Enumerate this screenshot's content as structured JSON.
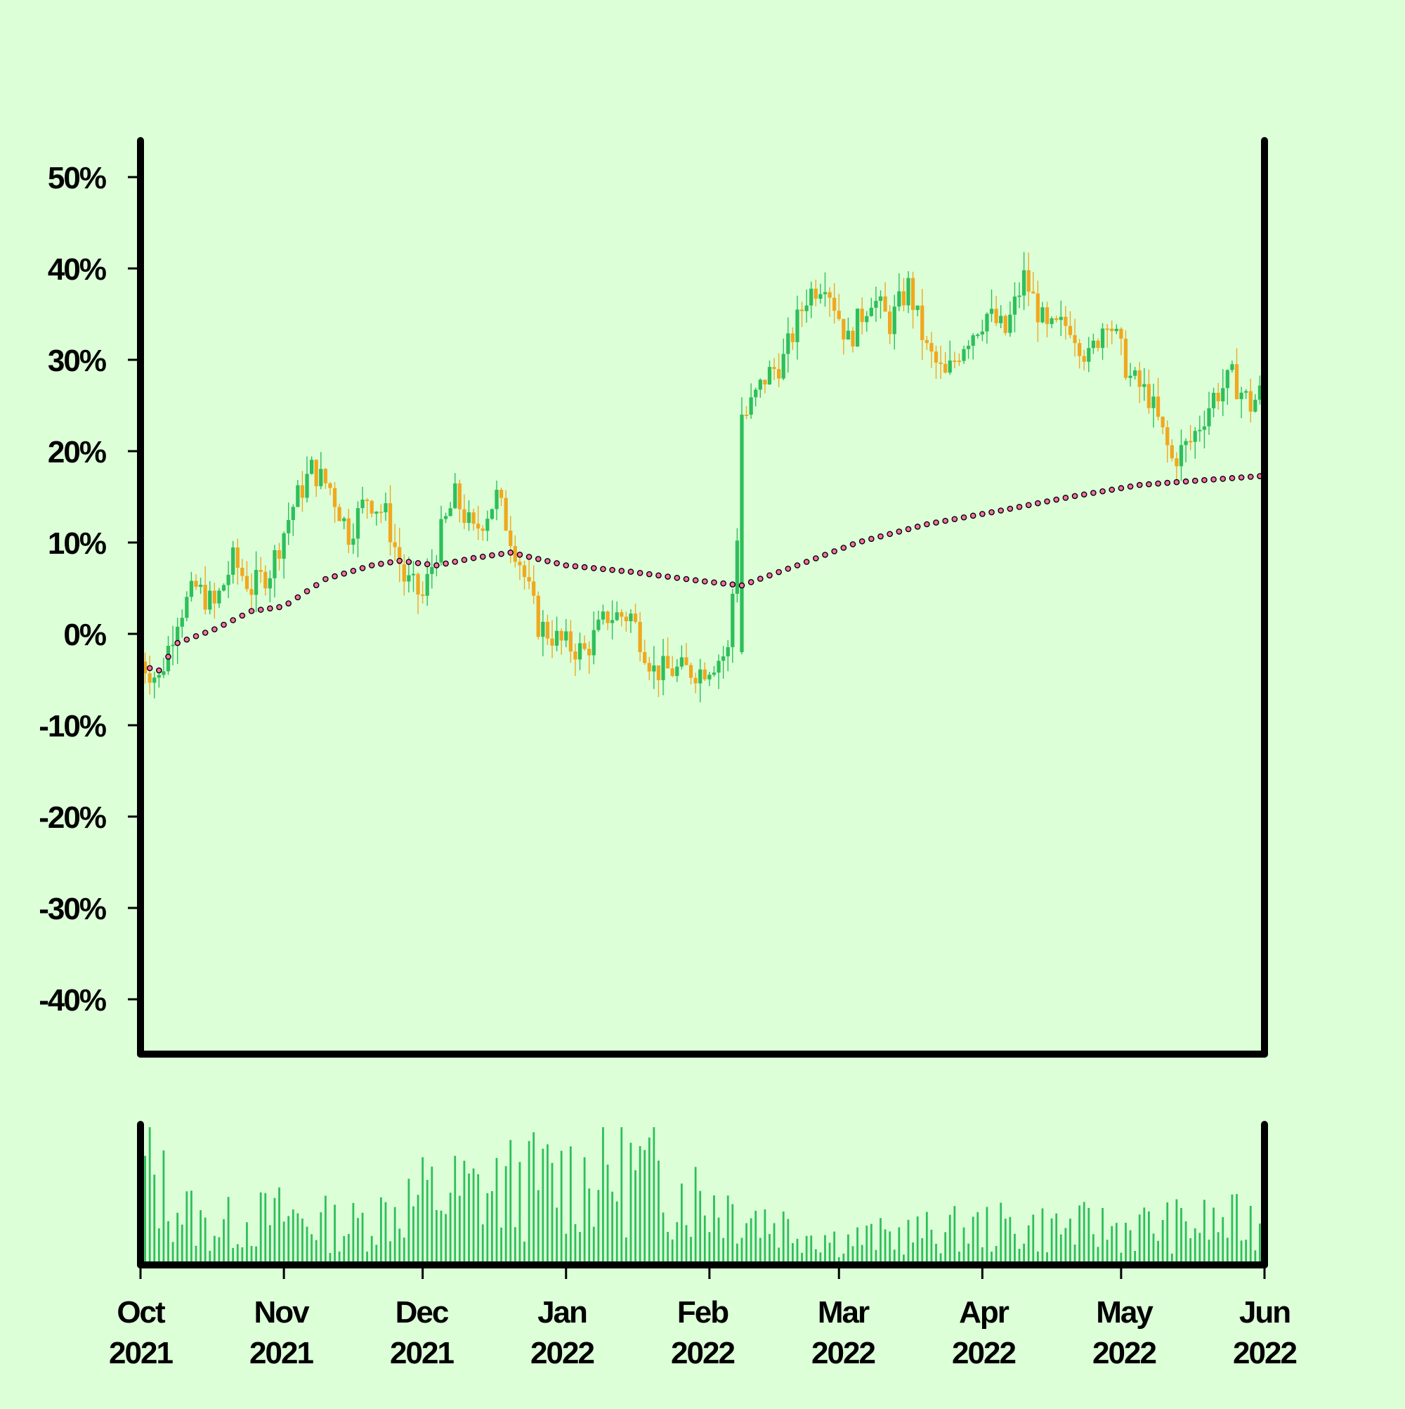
{
  "colors": {
    "background": "#dcffd8",
    "up": "#2ebf5a",
    "down": "#f0a81e",
    "volume": "#2ebf5a",
    "ma_fill": "#ff6fa8",
    "ma_stroke": "#000000",
    "axis": "#000000"
  },
  "chart_data": {
    "type": "candlestick",
    "title": "",
    "xlabel": "",
    "ylabel": "",
    "y_unit": "%",
    "ylim": [
      -46,
      54
    ],
    "yticks": [
      {
        "value": 50,
        "label": "50%"
      },
      {
        "value": 40,
        "label": "40%"
      },
      {
        "value": 30,
        "label": "30%"
      },
      {
        "value": 20,
        "label": "20%"
      },
      {
        "value": 10,
        "label": "10%"
      },
      {
        "value": 0,
        "label": "0%"
      },
      {
        "value": -10,
        "label": "-10%"
      },
      {
        "value": -20,
        "label": "-20%"
      },
      {
        "value": -30,
        "label": "-30%"
      },
      {
        "value": -40,
        "label": "-40%"
      }
    ],
    "xlim": [
      "2021-10-01",
      "2022-06-01"
    ],
    "xticks": [
      {
        "date": "2021-10-01",
        "month": "Oct",
        "year": "2021"
      },
      {
        "date": "2021-11-01",
        "month": "Nov",
        "year": "2021"
      },
      {
        "date": "2021-12-01",
        "month": "Dec",
        "year": "2021"
      },
      {
        "date": "2022-01-01",
        "month": "Jan",
        "year": "2022"
      },
      {
        "date": "2022-02-01",
        "month": "Feb",
        "year": "2022"
      },
      {
        "date": "2022-03-01",
        "month": "Mar",
        "year": "2022"
      },
      {
        "date": "2022-04-01",
        "month": "Apr",
        "year": "2022"
      },
      {
        "date": "2022-05-01",
        "month": "May",
        "year": "2022"
      },
      {
        "date": "2022-06-01",
        "month": "Jun",
        "year": "2022"
      }
    ],
    "close_path": [
      {
        "date": "2021-10-01",
        "value": -3
      },
      {
        "date": "2021-10-05",
        "value": -5
      },
      {
        "date": "2021-10-09",
        "value": 2
      },
      {
        "date": "2021-10-13",
        "value": 5
      },
      {
        "date": "2021-10-17",
        "value": 3
      },
      {
        "date": "2021-10-21",
        "value": 8
      },
      {
        "date": "2021-10-25",
        "value": 5
      },
      {
        "date": "2021-10-29",
        "value": 7
      },
      {
        "date": "2021-11-03",
        "value": 14
      },
      {
        "date": "2021-11-07",
        "value": 18
      },
      {
        "date": "2021-11-11",
        "value": 16
      },
      {
        "date": "2021-11-15",
        "value": 11
      },
      {
        "date": "2021-11-19",
        "value": 15
      },
      {
        "date": "2021-11-23",
        "value": 13
      },
      {
        "date": "2021-11-27",
        "value": 6
      },
      {
        "date": "2021-12-01",
        "value": 4
      },
      {
        "date": "2021-12-05",
        "value": 11
      },
      {
        "date": "2021-12-08",
        "value": 15
      },
      {
        "date": "2021-12-12",
        "value": 11
      },
      {
        "date": "2021-12-17",
        "value": 15
      },
      {
        "date": "2021-12-22",
        "value": 8
      },
      {
        "date": "2021-12-26",
        "value": 1
      },
      {
        "date": "2021-12-31",
        "value": -1
      },
      {
        "date": "2022-01-05",
        "value": -2
      },
      {
        "date": "2022-01-10",
        "value": 2
      },
      {
        "date": "2022-01-15",
        "value": 2
      },
      {
        "date": "2022-01-20",
        "value": -4
      },
      {
        "date": "2022-01-25",
        "value": -4
      },
      {
        "date": "2022-01-30",
        "value": -4
      },
      {
        "date": "2022-02-05",
        "value": -2
      },
      {
        "date": "2022-02-09",
        "value": 24
      },
      {
        "date": "2022-02-13",
        "value": 28
      },
      {
        "date": "2022-02-17",
        "value": 30
      },
      {
        "date": "2022-02-22",
        "value": 37
      },
      {
        "date": "2022-02-26",
        "value": 39
      },
      {
        "date": "2022-03-03",
        "value": 32
      },
      {
        "date": "2022-03-08",
        "value": 37
      },
      {
        "date": "2022-03-12",
        "value": 34
      },
      {
        "date": "2022-03-16",
        "value": 38
      },
      {
        "date": "2022-03-20",
        "value": 31
      },
      {
        "date": "2022-03-24",
        "value": 28
      },
      {
        "date": "2022-03-28",
        "value": 32
      },
      {
        "date": "2022-04-02",
        "value": 35
      },
      {
        "date": "2022-04-06",
        "value": 33
      },
      {
        "date": "2022-04-10",
        "value": 39
      },
      {
        "date": "2022-04-15",
        "value": 33
      },
      {
        "date": "2022-04-20",
        "value": 34
      },
      {
        "date": "2022-04-24",
        "value": 30
      },
      {
        "date": "2022-04-28",
        "value": 35
      },
      {
        "date": "2022-05-03",
        "value": 28
      },
      {
        "date": "2022-05-07",
        "value": 26
      },
      {
        "date": "2022-05-12",
        "value": 19
      },
      {
        "date": "2022-05-16",
        "value": 21
      },
      {
        "date": "2022-05-21",
        "value": 26
      },
      {
        "date": "2022-05-25",
        "value": 28
      },
      {
        "date": "2022-05-29",
        "value": 25
      },
      {
        "date": "2022-06-01",
        "value": 27
      }
    ],
    "moving_average": [
      {
        "date": "2021-10-01",
        "value": -3.5
      },
      {
        "date": "2021-10-05",
        "value": -4
      },
      {
        "date": "2021-10-09",
        "value": -1
      },
      {
        "date": "2021-10-17",
        "value": 0.5
      },
      {
        "date": "2021-10-25",
        "value": 2.5
      },
      {
        "date": "2021-11-01",
        "value": 3
      },
      {
        "date": "2021-11-10",
        "value": 6
      },
      {
        "date": "2021-11-20",
        "value": 7.5
      },
      {
        "date": "2021-11-26",
        "value": 8
      },
      {
        "date": "2021-12-04",
        "value": 7.5
      },
      {
        "date": "2021-12-12",
        "value": 8.3
      },
      {
        "date": "2021-12-20",
        "value": 8.9
      },
      {
        "date": "2022-01-01",
        "value": 7.5
      },
      {
        "date": "2022-01-15",
        "value": 6.8
      },
      {
        "date": "2022-01-30",
        "value": 5.8
      },
      {
        "date": "2022-02-08",
        "value": 5.3
      },
      {
        "date": "2022-02-20",
        "value": 7.5
      },
      {
        "date": "2022-03-05",
        "value": 10
      },
      {
        "date": "2022-03-20",
        "value": 12
      },
      {
        "date": "2022-04-05",
        "value": 13.5
      },
      {
        "date": "2022-04-20",
        "value": 15
      },
      {
        "date": "2022-05-05",
        "value": 16.3
      },
      {
        "date": "2022-05-18",
        "value": 16.8
      },
      {
        "date": "2022-06-01",
        "value": 17.3
      }
    ],
    "volume_profile": [
      {
        "date": "2021-10-01",
        "value": 0.85
      },
      {
        "date": "2021-10-07",
        "value": 0.55
      },
      {
        "date": "2021-10-15",
        "value": 0.3
      },
      {
        "date": "2021-11-01",
        "value": 0.4
      },
      {
        "date": "2021-11-15",
        "value": 0.3
      },
      {
        "date": "2021-12-01",
        "value": 0.55
      },
      {
        "date": "2021-12-15",
        "value": 0.6
      },
      {
        "date": "2022-01-01",
        "value": 0.7
      },
      {
        "date": "2022-01-15",
        "value": 0.75
      },
      {
        "date": "2022-01-31",
        "value": 0.55
      },
      {
        "date": "2022-02-15",
        "value": 0.35
      },
      {
        "date": "2022-03-01",
        "value": 0.2
      },
      {
        "date": "2022-04-01",
        "value": 0.3
      },
      {
        "date": "2022-05-01",
        "value": 0.3
      },
      {
        "date": "2022-06-01",
        "value": 0.35
      }
    ],
    "grid": false,
    "legend": "none"
  }
}
